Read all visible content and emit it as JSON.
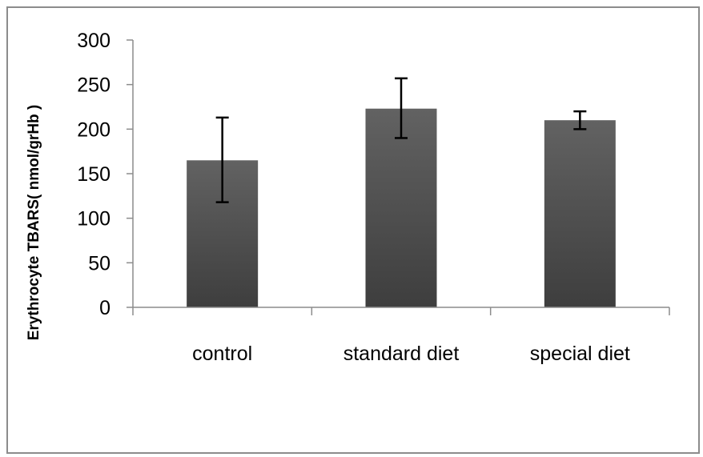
{
  "chart_data": {
    "type": "bar",
    "title": "",
    "xlabel": "",
    "ylabel": "Erythrocyte TBARS( nmol/grHb )",
    "categories": [
      "control",
      "standard diet",
      "special diet"
    ],
    "values": [
      165,
      223,
      210
    ],
    "error_low": [
      118,
      190,
      200
    ],
    "error_high": [
      213,
      257,
      220
    ],
    "ylim": [
      0,
      300
    ],
    "yticks": [
      0,
      50,
      100,
      150,
      200,
      250,
      300
    ],
    "grid": false,
    "legend": "none",
    "colors": {
      "bar_top": "#626262",
      "bar_bottom": "#3e3e3e",
      "axis": "#8c8c8c",
      "error_bar": "#000000"
    }
  }
}
